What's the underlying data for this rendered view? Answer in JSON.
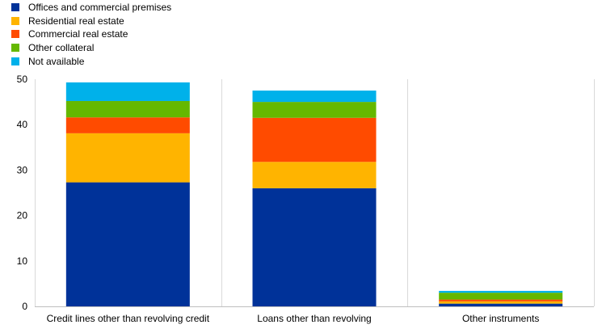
{
  "chart_data": {
    "type": "bar",
    "stacked": true,
    "categories": [
      "Credit lines other than revolving credit",
      "Loans other than revolving",
      "Other instruments"
    ],
    "series": [
      {
        "name": "Offices and commercial premises",
        "color": "#003299",
        "values": [
          27.3,
          26.0,
          0.6
        ]
      },
      {
        "name": "Residential real estate",
        "color": "#FFB400",
        "values": [
          10.8,
          5.8,
          0.5
        ]
      },
      {
        "name": "Commercial real estate",
        "color": "#FF4B00",
        "values": [
          3.5,
          9.7,
          0.4
        ]
      },
      {
        "name": "Other collateral",
        "color": "#65B800",
        "values": [
          3.6,
          3.5,
          1.5
        ]
      },
      {
        "name": "Not available",
        "color": "#00B1EA",
        "values": [
          4.1,
          2.5,
          0.4
        ]
      }
    ],
    "ylim": [
      0,
      50
    ],
    "yticks": [
      0,
      10,
      20,
      30,
      40,
      50
    ],
    "grid": "vertical separators",
    "legend": "top-left"
  }
}
